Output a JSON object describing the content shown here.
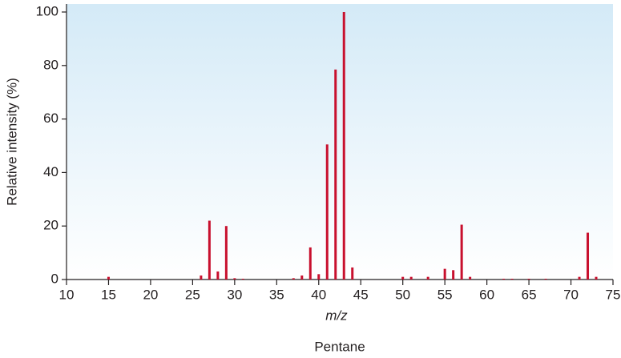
{
  "chart_data": {
    "type": "bar",
    "title": "Pentane",
    "xlabel": "m/z",
    "ylabel": "Relative intensity (%)",
    "x": [
      15,
      26,
      27,
      28,
      29,
      30,
      31,
      37,
      38,
      39,
      40,
      41,
      42,
      43,
      44,
      50,
      51,
      53,
      55,
      56,
      57,
      58,
      62,
      63,
      65,
      67,
      71,
      72,
      73
    ],
    "values": [
      1,
      1.5,
      22,
      3,
      20,
      0.5,
      0.3,
      0.5,
      1.5,
      12,
      2,
      50.5,
      78.5,
      100,
      4.5,
      1,
      1,
      1,
      4,
      3.5,
      20.5,
      1,
      0.3,
      0.3,
      0.3,
      0.3,
      1,
      17.5,
      1
    ],
    "color": "#c8102e",
    "xlim": [
      10,
      75
    ],
    "xticks": [
      10,
      15,
      20,
      25,
      30,
      35,
      40,
      45,
      50,
      55,
      60,
      65,
      70,
      75
    ],
    "ylim": [
      0,
      100
    ],
    "yticks": [
      0,
      20,
      40,
      60,
      80,
      100
    ]
  }
}
